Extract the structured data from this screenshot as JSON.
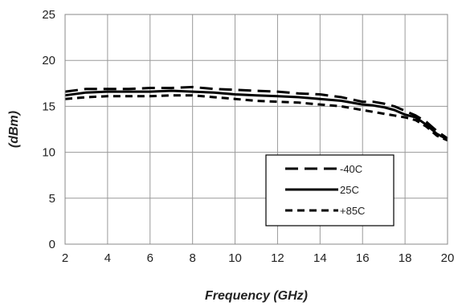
{
  "chart_data": {
    "type": "line",
    "title": "",
    "xlabel": "Frequency (GHz)",
    "ylabel": "(dBm)",
    "xlim": [
      2,
      20
    ],
    "ylim": [
      0,
      25
    ],
    "xticks": [
      2,
      4,
      6,
      8,
      10,
      12,
      14,
      16,
      18,
      20
    ],
    "yticks": [
      0,
      5,
      10,
      15,
      20,
      25
    ],
    "grid": true,
    "legend_position": "lower-right",
    "series": [
      {
        "name": "-40C",
        "style": "long-dash",
        "color": "#000000",
        "x": [
          2,
          3,
          4,
          5,
          6,
          7,
          8,
          9,
          10,
          11,
          12,
          13,
          14,
          15,
          16,
          16.5,
          17,
          17.5,
          18,
          18.5,
          19,
          19.5,
          20
        ],
        "y": [
          16.6,
          16.9,
          16.9,
          16.9,
          17.0,
          17.0,
          17.1,
          16.9,
          16.8,
          16.7,
          16.6,
          16.4,
          16.3,
          16.0,
          15.5,
          15.5,
          15.3,
          15.0,
          14.5,
          14.0,
          13.3,
          12.3,
          11.5
        ]
      },
      {
        "name": "25C",
        "style": "solid",
        "color": "#000000",
        "x": [
          2,
          3,
          4,
          5,
          6,
          7,
          8,
          9,
          10,
          11,
          12,
          13,
          14,
          15,
          16,
          16.5,
          17,
          17.5,
          18,
          18.5,
          19,
          19.5,
          20
        ],
        "y": [
          16.2,
          16.5,
          16.6,
          16.6,
          16.6,
          16.7,
          16.6,
          16.5,
          16.3,
          16.2,
          16.1,
          16.0,
          15.8,
          15.6,
          15.2,
          15.1,
          14.9,
          14.6,
          14.1,
          13.8,
          13.0,
          12.0,
          11.4
        ]
      },
      {
        "name": "+85C",
        "style": "short-dash",
        "color": "#000000",
        "x": [
          2,
          3,
          4,
          5,
          6,
          7,
          8,
          9,
          10,
          11,
          12,
          13,
          14,
          15,
          16,
          16.5,
          17,
          17.5,
          18,
          18.5,
          19,
          19.5,
          20
        ],
        "y": [
          15.8,
          16.0,
          16.1,
          16.1,
          16.1,
          16.2,
          16.2,
          16.0,
          15.8,
          15.6,
          15.5,
          15.4,
          15.2,
          15.0,
          14.6,
          14.4,
          14.2,
          14.0,
          13.8,
          13.5,
          12.8,
          11.8,
          11.3
        ]
      }
    ]
  }
}
